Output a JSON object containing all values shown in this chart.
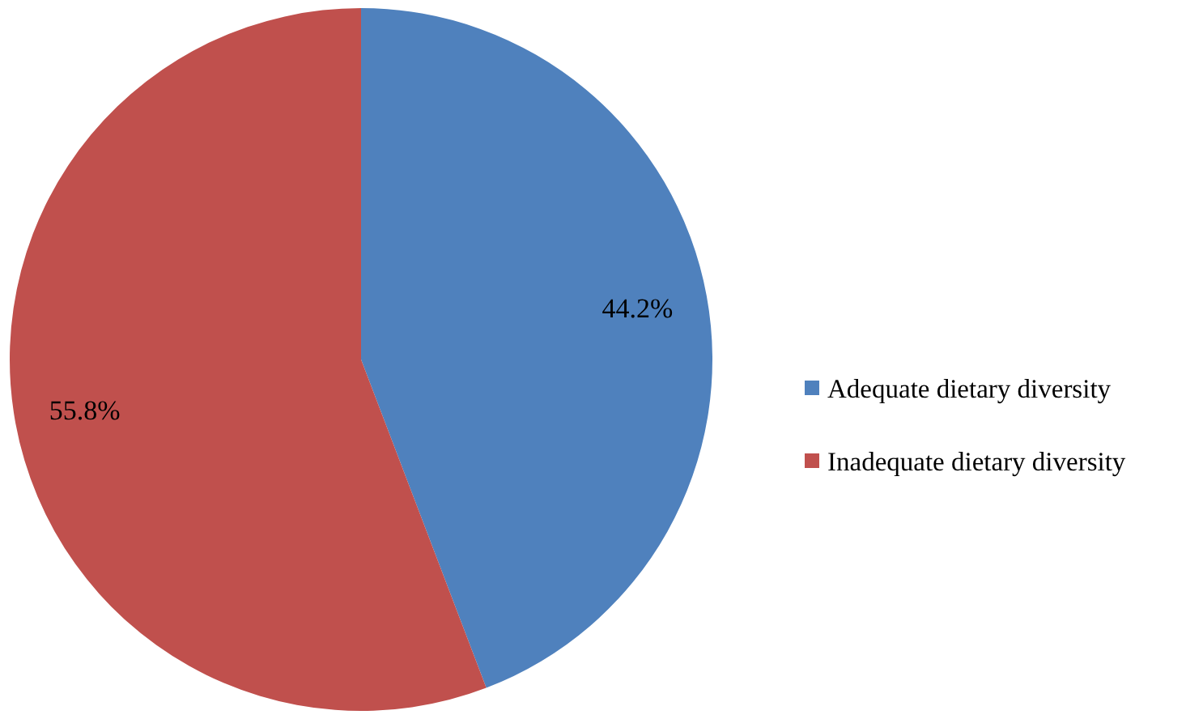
{
  "chart_data": {
    "type": "pie",
    "categories": [
      "Adequate dietary diversity",
      "Inadequate dietary diversity"
    ],
    "values": [
      44.2,
      55.8
    ],
    "colors": [
      "#4f81bd",
      "#c0504d"
    ],
    "value_labels": [
      "44.2%",
      "55.8%"
    ],
    "legend": "right"
  }
}
